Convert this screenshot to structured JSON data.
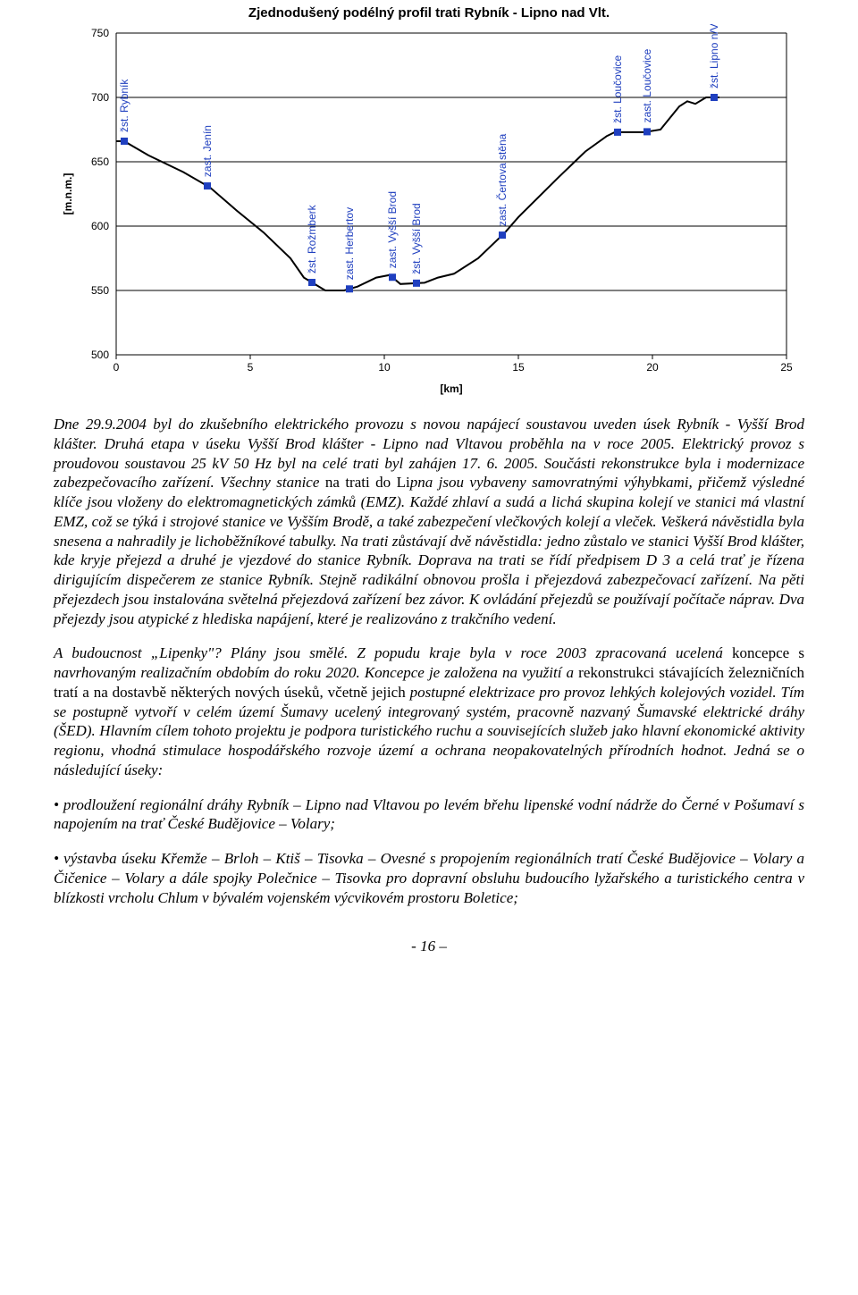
{
  "chart": {
    "type": "line",
    "title": "Zjednodušený podélný profil trati Rybník - Lipno nad Vlt.",
    "title_fontsize": 15,
    "xlabel": "[km]",
    "ylabel": "[m.n.m.]",
    "label_fontsize": 12,
    "tick_fontsize": 12,
    "xlim": [
      0,
      25
    ],
    "ylim": [
      500,
      750
    ],
    "xticks": [
      0,
      5,
      10,
      15,
      20,
      25
    ],
    "yticks": [
      500,
      550,
      600,
      650,
      700,
      750
    ],
    "grid_color": "#000000",
    "grid_width": 1,
    "background_color": "#ffffff",
    "line_color": "#000000",
    "line_width": 2,
    "profile": [
      [
        0.0,
        666
      ],
      [
        0.3,
        666
      ],
      [
        1.2,
        655
      ],
      [
        2.5,
        642
      ],
      [
        3.5,
        630
      ],
      [
        4.5,
        612
      ],
      [
        5.5,
        595
      ],
      [
        6.5,
        575
      ],
      [
        7.0,
        560
      ],
      [
        7.8,
        550
      ],
      [
        8.5,
        550
      ],
      [
        9.0,
        553
      ],
      [
        9.7,
        560
      ],
      [
        10.2,
        562
      ],
      [
        10.6,
        555
      ],
      [
        11.5,
        556
      ],
      [
        12.0,
        560
      ],
      [
        12.6,
        563
      ],
      [
        13.5,
        575
      ],
      [
        14.5,
        595
      ],
      [
        15.0,
        607
      ],
      [
        16.5,
        638
      ],
      [
        17.5,
        658
      ],
      [
        18.3,
        670
      ],
      [
        18.6,
        673
      ],
      [
        19.0,
        673
      ],
      [
        19.7,
        673
      ],
      [
        20.3,
        675
      ],
      [
        21.0,
        693
      ],
      [
        21.3,
        697
      ],
      [
        21.6,
        695
      ],
      [
        22.0,
        700
      ],
      [
        22.2,
        700
      ],
      [
        22.5,
        700
      ]
    ],
    "station_color": "#1f3fbf",
    "station_fontsize": 12,
    "stations": [
      {
        "km": 0.3,
        "label": "žst. Rybník"
      },
      {
        "km": 3.4,
        "label": "zast. Jenín"
      },
      {
        "km": 7.3,
        "label": "žst. Rožmberk"
      },
      {
        "km": 8.7,
        "label": "zast. Herbertov"
      },
      {
        "km": 10.3,
        "label": "zast. Vyšší Brod"
      },
      {
        "km": 11.2,
        "label": "žst. Vyšší Brod"
      },
      {
        "km": 14.4,
        "label": "zast. Čertova stěna"
      },
      {
        "km": 18.7,
        "label": "žst. Loučovice"
      },
      {
        "km": 19.8,
        "label": "zast. Loučovice"
      },
      {
        "km": 22.3,
        "label": "žst. Lipno n/Vlt."
      }
    ]
  },
  "text": {
    "p1a": "Dne 29.9.2004 byl do zkušebního elektrického provozu s novou napájecí soustavou uveden úsek Rybník - Vyšší Brod klášter. Druhá etapa v úseku Vyšší Brod klášter - Lipno nad Vltavou proběhla na v roce 2005. Elektrický provoz s proudovou soustavou 25 kV 50 Hz byl na celé trati byl zahájen 17. 6. 2005. Součásti rekonstrukce byla i modernizace zabezpečovacího zařízení. Všechny stanice ",
    "p1b_upright": "na trati do Li",
    "p1c": "pna jsou vybaveny samovratnými výhybkami, přičemž výsledné klíče jsou vloženy do elektromagnetických zámků (EMZ). Každé zhlaví a sudá a lichá skupina kolejí ve stanici má vlastní EMZ, což se týká i strojové stanice ve Vyšším Brodě, a také zabezpečení vlečkových kolejí a vleček. Veškerá návěstidla byla snesena a nahradily je lichoběžníkové tabulky. Na trati zůstávají dvě návěstidla: jedno zůstalo ve stanici Vyšší Brod klášter, kde kryje přejezd a druhé je vjezdové do stanice Rybník. Doprava na trati se řídí předpisem D 3 a celá trať je řízena dirigujícím dispečerem ze stanice Rybník. Stejně radikální obnovou prošla i přejezdová zabezpečovací zařízení. Na pěti přejezdech jsou instalována světelná přejezdová zařízení bez závor. K ovládání přejezdů se používají počítače náprav. Dva přejezdy jsou atypické z hlediska napájení, které je realizováno z trakčního vedení.",
    "p2a": "A budoucnost „Lipenky\"? Plány jsou smělé. Z popudu kraje byla v roce 2003 zpracovaná ucelená ",
    "p2b_upright": "koncepce s ",
    "p2c": "navrhovaným realizačním obdobím do roku 2020. Koncepce je založena na využití a ",
    "p2d_upright": "rekonstrukci stávajících železničních tratí a na dostavbě některých nových úseků, včetně jejich ",
    "p2e": "postupné elektrizace pro provoz lehkých kolejových vozidel. Tím se postupně vytvoří v celém území Šumavy ucelený integrovaný systém, pracovně nazvaný Šumavské elektrické dráhy (ŠED). Hlavním cílem tohoto projektu je podpora turistického ruchu a souvisejících služeb jako hlavní ekonomické aktivity regionu, vhodná stimulace hospodářského rozvoje území a ochrana neopakovatelných přírodních hodnot. Jedná se o následující úseky:",
    "b1a": "• prodloužení regionální dráhy Rybník – Lipno nad Vltavou po levém břehu lipenské vodní nádrže do Černé v Pošumaví s napojením na trať České Budějovice – ",
    "b1b_upright": "Volary;",
    "b2a": "• výstavba úseku Křemže – ",
    "b2b_upright": "Brloh ",
    "b2c": "– Ktiš – ",
    "b2d_upright": "Tisovka ",
    "b2e": "– Ovesné s propojením regionálních tratí České Budějovice – Volary a Čičenice – Volary a dále spojky Polečnice – Tisovka pro dopravní obsluhu budoucího lyžařského a turistického centra v blízkosti vrcholu Chlum v bývalém vojenském výcvikovém prostoru Boletice;"
  },
  "page_number": "- 16 –"
}
